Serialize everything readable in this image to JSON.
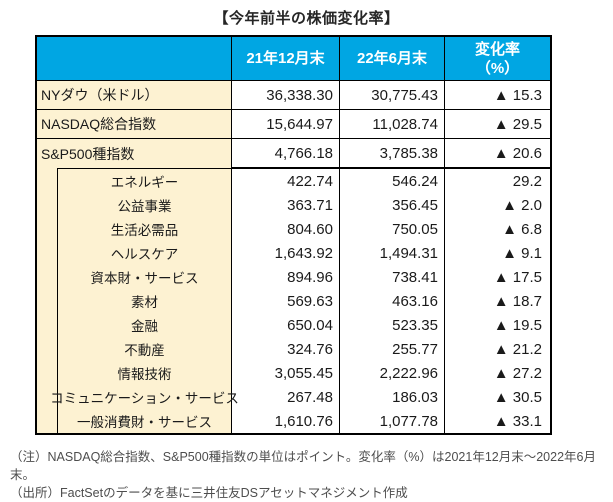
{
  "title": "【今年前半の株価変化率】",
  "colors": {
    "header_bg": "#00a6e3",
    "header_text": "#ffffff",
    "label_bg": "#fdf2d2",
    "border": "#000000",
    "body_text": "#1a1a1a",
    "note_text": "#4d4d4d"
  },
  "chart_data": {
    "type": "table",
    "title": "【今年前半の株価変化率】",
    "columns": [
      "",
      "21年12月末",
      "22年6月末",
      "変化率（%）"
    ],
    "header": {
      "col1": "",
      "col2": "21年12月末",
      "col3": "22年6月末",
      "col4_line1": "変化率",
      "col4_line2": "（%）"
    },
    "index_rows": [
      {
        "label": "NYダウ（米ドル）",
        "dec21": "36,338.30",
        "jun22": "30,775.43",
        "change": "▲ 15.3"
      },
      {
        "label": "NASDAQ総合指数",
        "dec21": "15,644.97",
        "jun22": "11,028.74",
        "change": "▲ 29.5"
      },
      {
        "label": "S&P500種指数",
        "dec21": "4,766.18",
        "jun22": "3,785.38",
        "change": "▲ 20.6"
      }
    ],
    "sector_rows": [
      {
        "label": "エネルギー",
        "dec21": "422.74",
        "jun22": "546.24",
        "change": "29.2"
      },
      {
        "label": "公益事業",
        "dec21": "363.71",
        "jun22": "356.45",
        "change": "▲ 2.0"
      },
      {
        "label": "生活必需品",
        "dec21": "804.60",
        "jun22": "750.05",
        "change": "▲ 6.8"
      },
      {
        "label": "ヘルスケア",
        "dec21": "1,643.92",
        "jun22": "1,494.31",
        "change": "▲ 9.1"
      },
      {
        "label": "資本財・サービス",
        "dec21": "894.96",
        "jun22": "738.41",
        "change": "▲ 17.5"
      },
      {
        "label": "素材",
        "dec21": "569.63",
        "jun22": "463.16",
        "change": "▲ 18.7"
      },
      {
        "label": "金融",
        "dec21": "650.04",
        "jun22": "523.35",
        "change": "▲ 19.5"
      },
      {
        "label": "不動産",
        "dec21": "324.76",
        "jun22": "255.77",
        "change": "▲ 21.2"
      },
      {
        "label": "情報技術",
        "dec21": "3,055.45",
        "jun22": "2,222.96",
        "change": "▲ 27.2"
      },
      {
        "label": "コミュニケーション・サービス",
        "dec21": "267.48",
        "jun22": "186.03",
        "change": "▲ 30.5"
      },
      {
        "label": "一般消費財・サービス",
        "dec21": "1,610.76",
        "jun22": "1,077.78",
        "change": "▲ 33.1"
      }
    ],
    "notes": {
      "line1": "（注）NASDAQ総合指数、S&P500種指数の単位はポイント。変化率（%）は2021年12月末～2022年6月末。",
      "line2": "（出所）FactSetのデータを基に三井住友DSアセットマネジメント作成"
    }
  }
}
